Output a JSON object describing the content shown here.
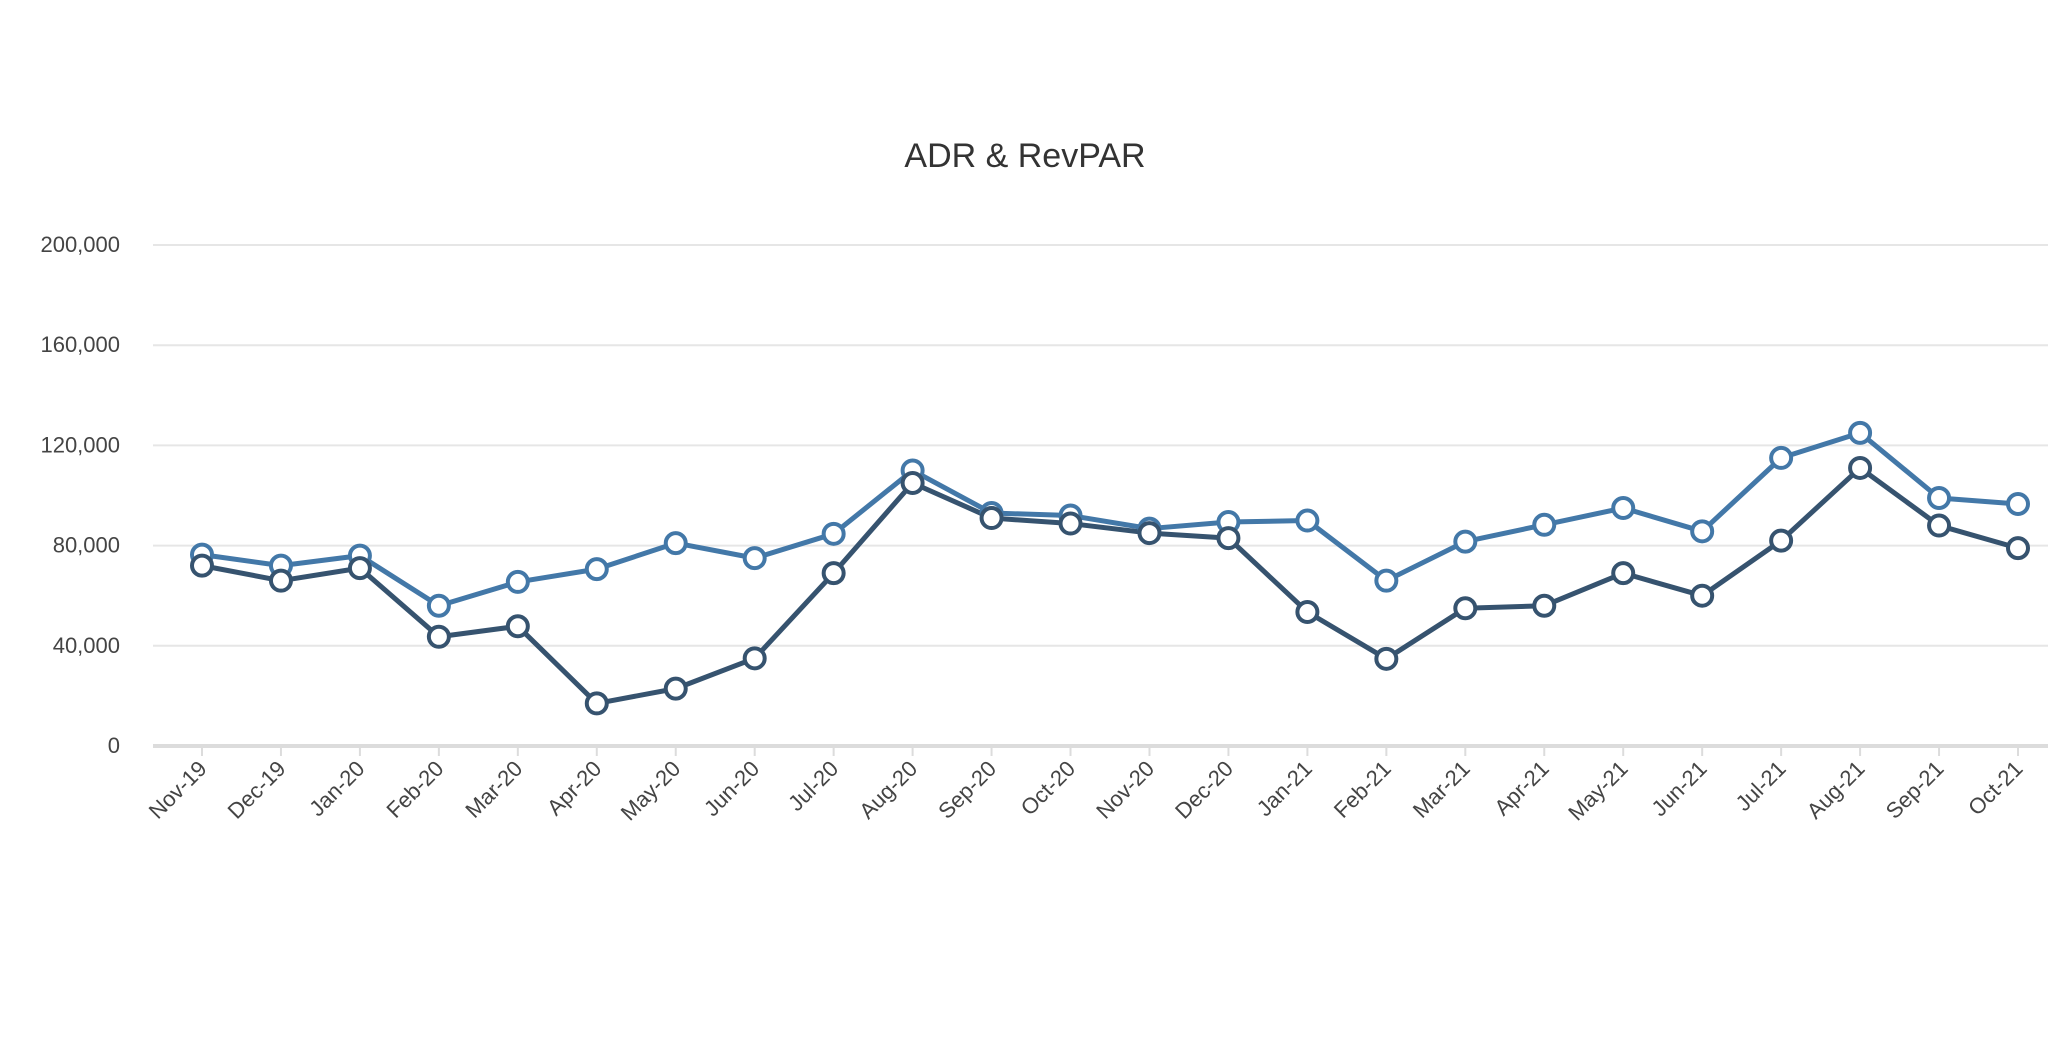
{
  "chart_data": {
    "type": "line",
    "title": "ADR & RevPAR",
    "xlabel": "",
    "ylabel": "",
    "ylim": [
      0,
      200000
    ],
    "yticks": [
      "0",
      "40,000",
      "80,000",
      "120,000",
      "160,000",
      "200,000"
    ],
    "ytick_values": [
      0,
      40000,
      80000,
      120000,
      160000,
      200000
    ],
    "grid": true,
    "legend": "none",
    "categories": [
      "Nov-19",
      "Dec-19",
      "Jan-20",
      "Feb-20",
      "Mar-20",
      "Apr-20",
      "May-20",
      "Jun-20",
      "Jul-20",
      "Aug-20",
      "Sep-20",
      "Oct-20",
      "Nov-20",
      "Dec-20",
      "Jan-21",
      "Feb-21",
      "Mar-21",
      "Apr-21",
      "May-21",
      "Jun-21",
      "Jul-21",
      "Aug-21",
      "Sep-21",
      "Oct-21"
    ],
    "series": [
      {
        "color": "#4378a8",
        "values": [
          76400,
          72000,
          76000,
          56000,
          65500,
          70600,
          81000,
          75000,
          84700,
          110000,
          93000,
          92000,
          86800,
          89400,
          90000,
          66000,
          81600,
          88300,
          95000,
          85700,
          115000,
          125000,
          99000,
          96600
        ]
      },
      {
        "color": "#36536f",
        "values": [
          72000,
          66000,
          71000,
          43600,
          47800,
          17000,
          22900,
          35000,
          69000,
          105000,
          91000,
          88800,
          85000,
          83000,
          53500,
          34800,
          55000,
          56000,
          69000,
          60000,
          82000,
          111000,
          88000,
          79000
        ]
      }
    ]
  }
}
